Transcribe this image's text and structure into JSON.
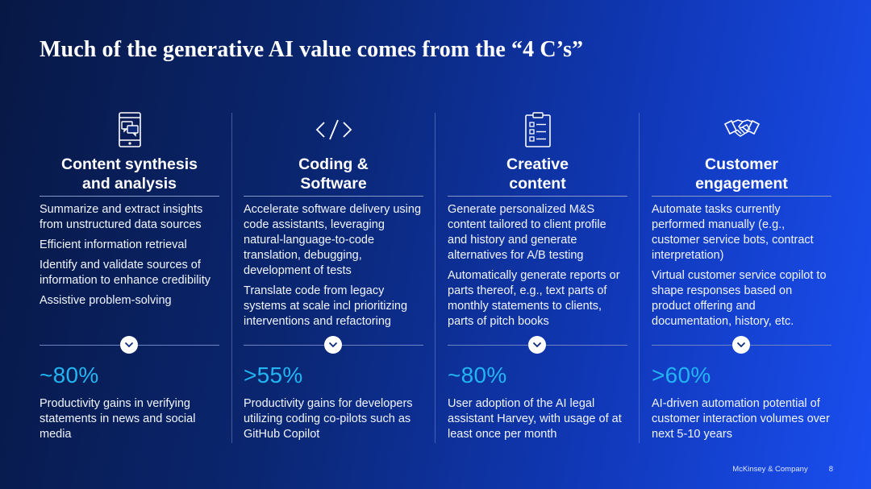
{
  "title": "Much of the generative AI value comes from the “4 C’s”",
  "accent_color": "#22b5f2",
  "columns": [
    {
      "icon": "phone-chat-icon",
      "heading_line1": "Content synthesis",
      "heading_line2": "and analysis",
      "bullets": [
        "Summarize and extract insights from unstructured data sources",
        "Efficient information retrieval",
        "Identify and validate sources of information to enhance credibility",
        "Assistive problem-solving"
      ],
      "stat": "~80%",
      "stat_desc": "Productivity gains in verifying statements in news and social media"
    },
    {
      "icon": "code-brackets-icon",
      "heading_line1": "Coding &",
      "heading_line2": "Software",
      "bullets": [
        "Accelerate software delivery using code assistants, leveraging natural-language-to-code translation, debugging, development of tests",
        "Translate code from legacy systems at scale incl prioritizing interventions and refactoring"
      ],
      "stat": ">55%",
      "stat_desc": "Productivity gains for developers utilizing coding co-pilots such as GitHub Copilot"
    },
    {
      "icon": "clipboard-list-icon",
      "heading_line1": "Creative",
      "heading_line2": "content",
      "bullets": [
        "Generate personalized M&S content tailored to client profile and history and generate alternatives for A/B testing",
        "Automatically generate reports or parts thereof, e.g., text parts of monthly statements to clients, parts of pitch books"
      ],
      "stat": "~80%",
      "stat_desc": "User adoption of the AI legal assistant Harvey, with usage of at least once per month"
    },
    {
      "icon": "handshake-icon",
      "heading_line1": "Customer",
      "heading_line2": "engagement",
      "bullets": [
        "Automate tasks currently performed manually (e.g., customer service bots, contract interpretation)",
        "Virtual customer service copilot to shape responses based on product offering and documentation, history, etc."
      ],
      "stat": ">60%",
      "stat_desc": "AI-driven automation potential of customer interaction volumes over next 5-10 years"
    }
  ],
  "footer": {
    "company": "McKinsey & Company",
    "page": "8"
  }
}
